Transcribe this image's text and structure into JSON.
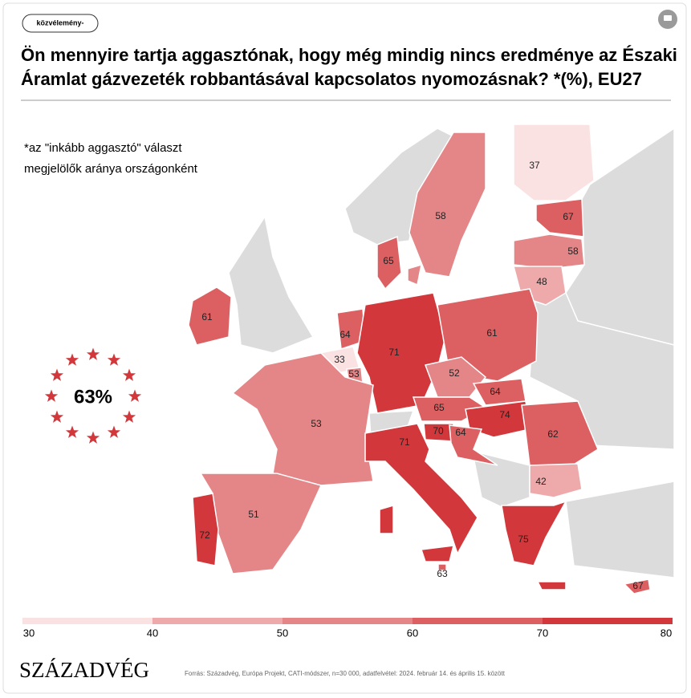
{
  "tag": "közvélemény-",
  "title_lines": [
    "Ön mennyire tartja aggasztónak, hogy még mindig nincs eredménye az Északi",
    "Áramlat gázvezeték robbantásával kapcsolatos nyomozásnak? *(%), EU27"
  ],
  "note_lines": [
    "*az \"inkább aggasztó\" választ",
    "megjelölők aránya országonként"
  ],
  "eu_average": "63%",
  "countries": [
    37,
    58,
    67,
    58,
    48,
    61,
    65,
    64,
    33,
    53,
    71,
    61,
    52,
    64,
    65,
    74,
    70,
    64,
    62,
    42,
    53,
    71,
    51,
    72,
    75,
    63,
    67
  ],
  "scale": {
    "ticks": [
      30,
      40,
      50,
      60,
      70,
      80
    ],
    "colors": [
      "#fbe2e2",
      "#eeaaab",
      "#e48587",
      "#dc5f62",
      "#d2383b"
    ]
  },
  "logo": "SZÁZADVÉG",
  "source": "Forrás: Századvég, Európa Projekt, CATI-módszer, n=30 000, adatfelvétel: 2024. február 14. és április 15. között"
}
